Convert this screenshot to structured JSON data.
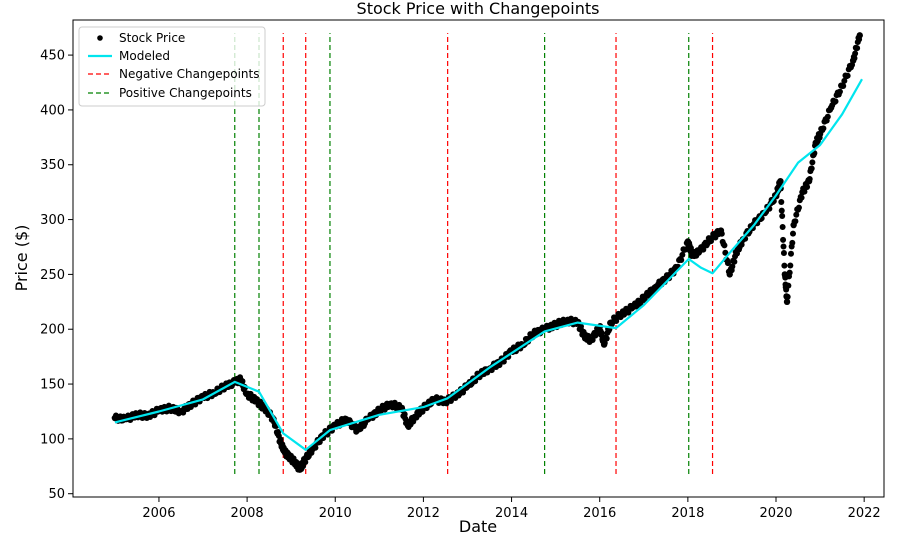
{
  "chart_data": {
    "type": "line",
    "title": "Stock Price with Changepoints",
    "xlabel": "Date",
    "ylabel": "Price ($)",
    "xlim": [
      2004.05,
      2022.45
    ],
    "ylim": [
      47,
      482
    ],
    "xticks": [
      2006,
      2008,
      2010,
      2012,
      2014,
      2016,
      2018,
      2020,
      2022
    ],
    "xtick_labels": [
      "2006",
      "2008",
      "2010",
      "2012",
      "2014",
      "2016",
      "2018",
      "2020",
      "2022"
    ],
    "yticks": [
      50,
      100,
      150,
      200,
      250,
      300,
      350,
      400,
      450
    ],
    "ytick_labels": [
      "50",
      "100",
      "150",
      "200",
      "250",
      "300",
      "350",
      "400",
      "450"
    ],
    "legend": {
      "location": "upper-left",
      "entries": [
        {
          "label": "Stock Price",
          "marker": "dot",
          "color": "#000000"
        },
        {
          "label": "Modeled",
          "marker": "line",
          "color": "#00e5ee"
        },
        {
          "label": "Negative Changepoints",
          "marker": "dashed",
          "color": "#ff0000"
        },
        {
          "label": "Positive Changepoints",
          "marker": "dashed",
          "color": "#008000"
        }
      ]
    },
    "colors": {
      "stock": "#000000",
      "modeled": "#00e5ee",
      "negative": "#ff0000",
      "positive": "#008000"
    },
    "changepoints": {
      "positive": [
        2007.72,
        2008.27,
        2009.88,
        2014.75,
        2018.02
      ],
      "negative": [
        2008.82,
        2009.33,
        2012.55,
        2016.37,
        2018.56
      ],
      "y_range": [
        68,
        470
      ]
    },
    "series": [
      {
        "name": "Stock Price",
        "kind": "scatter",
        "x": [
          2005.0,
          2005.25,
          2005.5,
          2005.75,
          2006.0,
          2006.25,
          2006.5,
          2006.75,
          2007.0,
          2007.25,
          2007.5,
          2007.75,
          2007.85,
          2008.0,
          2008.2,
          2008.4,
          2008.6,
          2008.75,
          2008.85,
          2008.95,
          2009.1,
          2009.2,
          2009.3,
          2009.5,
          2009.75,
          2010.0,
          2010.25,
          2010.5,
          2010.75,
          2011.0,
          2011.25,
          2011.5,
          2011.65,
          2011.8,
          2012.0,
          2012.25,
          2012.5,
          2012.75,
          2013.0,
          2013.25,
          2013.5,
          2013.75,
          2014.0,
          2014.25,
          2014.5,
          2014.75,
          2015.0,
          2015.25,
          2015.5,
          2015.65,
          2015.8,
          2016.0,
          2016.1,
          2016.25,
          2016.5,
          2016.75,
          2017.0,
          2017.25,
          2017.5,
          2017.75,
          2018.0,
          2018.1,
          2018.25,
          2018.5,
          2018.75,
          2018.95,
          2019.1,
          2019.25,
          2019.5,
          2019.75,
          2020.0,
          2020.1,
          2020.2,
          2020.25,
          2020.4,
          2020.6,
          2020.75,
          2020.9,
          2021.0,
          2021.25,
          2021.5,
          2021.75,
          2021.9
        ],
        "y": [
          119,
          118,
          122,
          121,
          126,
          128,
          125,
          132,
          138,
          142,
          148,
          152,
          154,
          141,
          135,
          128,
          118,
          98,
          88,
          84,
          78,
          72,
          80,
          92,
          104,
          112,
          118,
          108,
          118,
          126,
          132,
          128,
          112,
          120,
          128,
          136,
          134,
          140,
          148,
          158,
          164,
          170,
          180,
          186,
          196,
          200,
          204,
          208,
          206,
          194,
          190,
          202,
          186,
          206,
          214,
          220,
          228,
          238,
          246,
          256,
          280,
          268,
          270,
          282,
          290,
          250,
          270,
          282,
          296,
          306,
          322,
          335,
          250,
          225,
          295,
          325,
          335,
          370,
          378,
          402,
          422,
          445,
          468
        ]
      },
      {
        "name": "Modeled",
        "kind": "line",
        "x": [
          2005.0,
          2006.0,
          2007.0,
          2007.72,
          2008.27,
          2008.82,
          2009.33,
          2009.88,
          2011.0,
          2012.0,
          2012.55,
          2013.5,
          2014.75,
          2015.5,
          2016.37,
          2017.0,
          2018.02,
          2018.3,
          2018.56,
          2019.0,
          2019.5,
          2020.0,
          2020.5,
          2021.0,
          2021.5,
          2021.95
        ],
        "y": [
          115,
          125,
          136,
          152,
          143,
          105,
          90,
          108,
          122,
          129,
          137,
          165,
          198,
          206,
          201,
          222,
          264,
          256,
          251,
          272,
          295,
          322,
          352,
          368,
          396,
          428
        ]
      }
    ]
  }
}
